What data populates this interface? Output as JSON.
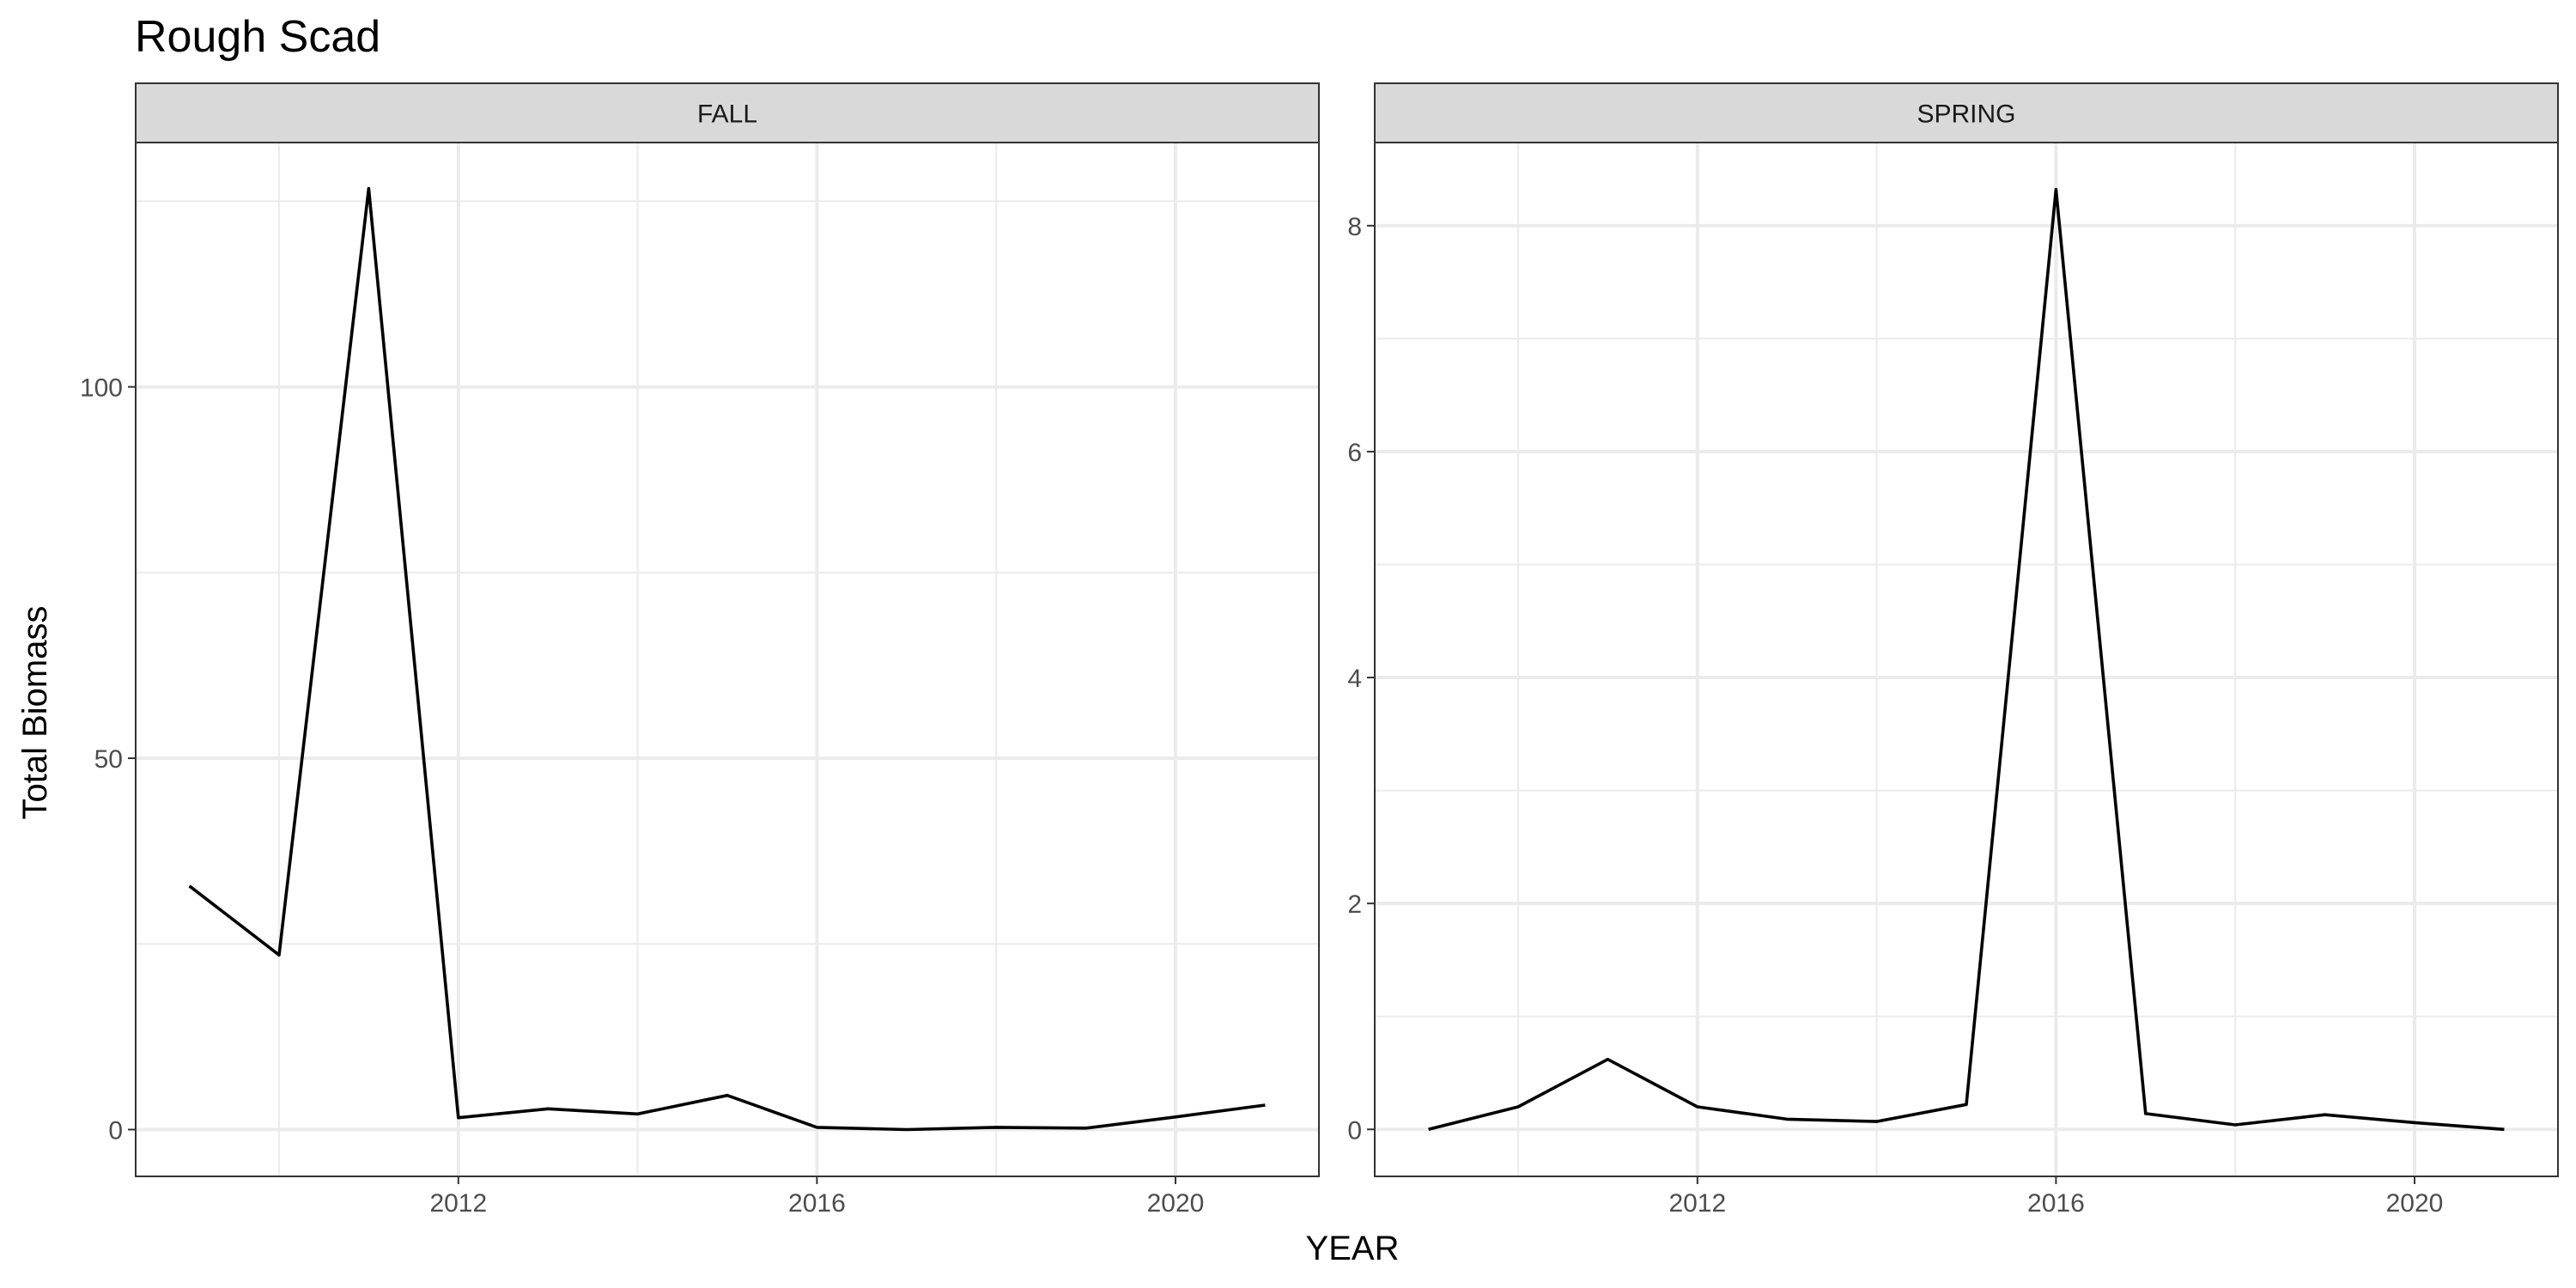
{
  "chart_data": {
    "type": "line",
    "title": "Rough Scad",
    "xlabel": "YEAR",
    "ylabel": "Total Biomass",
    "grid": true,
    "line_color": "#000000",
    "panels": [
      {
        "name": "FALL",
        "x": [
          2009,
          2010,
          2011,
          2012,
          2013,
          2014,
          2015,
          2016,
          2017,
          2018,
          2019,
          2020,
          2021
        ],
        "y": [
          32.8,
          23.5,
          126.7,
          1.6,
          2.8,
          2.1,
          4.6,
          0.3,
          0.0,
          0.3,
          0.2,
          1.7,
          3.3
        ],
        "xlim": [
          2008.4,
          2021.6
        ],
        "ylim": [
          -6.3,
          132.9
        ],
        "x_ticks": [
          2012,
          2016,
          2020
        ],
        "y_ticks": [
          0,
          50,
          100
        ]
      },
      {
        "name": "SPRING",
        "x": [
          2009,
          2010,
          2011,
          2012,
          2013,
          2014,
          2015,
          2016,
          2017,
          2018,
          2019,
          2020,
          2021
        ],
        "y": [
          0.0,
          0.2,
          0.62,
          0.2,
          0.09,
          0.07,
          0.22,
          8.32,
          0.14,
          0.04,
          0.13,
          0.06,
          0.0
        ],
        "xlim": [
          2008.4,
          2021.6
        ],
        "ylim": [
          -0.416,
          8.736
        ],
        "x_ticks": [
          2012,
          2016,
          2020
        ],
        "y_ticks": [
          0,
          2,
          4,
          6,
          8
        ]
      }
    ]
  }
}
